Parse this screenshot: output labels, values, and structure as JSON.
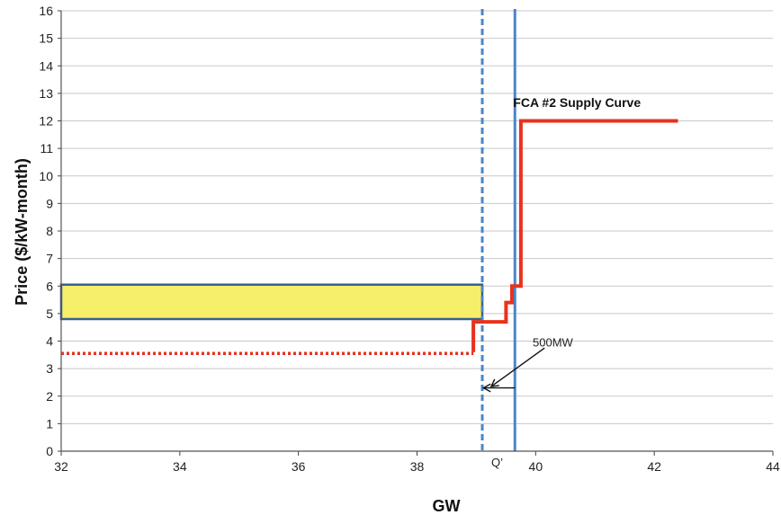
{
  "chart_data": {
    "type": "line",
    "xlabel": "GW",
    "ylabel": "Price ($/kW-month)",
    "xlim": [
      32,
      44
    ],
    "ylim": [
      0,
      16
    ],
    "xticks": [
      32,
      34,
      36,
      38,
      40,
      42,
      44
    ],
    "yticks": [
      0,
      1,
      2,
      3,
      4,
      5,
      6,
      7,
      8,
      9,
      10,
      11,
      12,
      13,
      14,
      15,
      16
    ],
    "grid": "horizontal",
    "series": [
      {
        "name": "FCA #2 Supply Curve",
        "style": "solid",
        "color": "#e8321e",
        "points": [
          [
            38.95,
            3.6
          ],
          [
            38.95,
            4.7
          ],
          [
            39.5,
            4.7
          ],
          [
            39.5,
            5.4
          ],
          [
            39.6,
            5.4
          ],
          [
            39.6,
            6.0
          ],
          [
            39.75,
            6.0
          ],
          [
            39.75,
            12.0
          ],
          [
            42.4,
            12.0
          ]
        ]
      },
      {
        "style": "dotted",
        "color": "#e8321e",
        "points": [
          [
            32,
            3.55
          ],
          [
            38.95,
            3.55
          ]
        ]
      }
    ],
    "vlines": [
      {
        "x": 39.1,
        "style": "dashed",
        "color": "#4a86c8"
      },
      {
        "x": 39.65,
        "style": "solid",
        "color": "#4a86c8"
      }
    ],
    "rectangle": {
      "x": [
        32,
        39.1
      ],
      "y": [
        4.8,
        6.05
      ],
      "fill": "#f5ef6a",
      "stroke": "#3b5f8f"
    },
    "annotations": {
      "supply_curve_label": "FCA #2 Supply Curve",
      "q_prime": "Q’",
      "mw_label": "500MW"
    }
  }
}
